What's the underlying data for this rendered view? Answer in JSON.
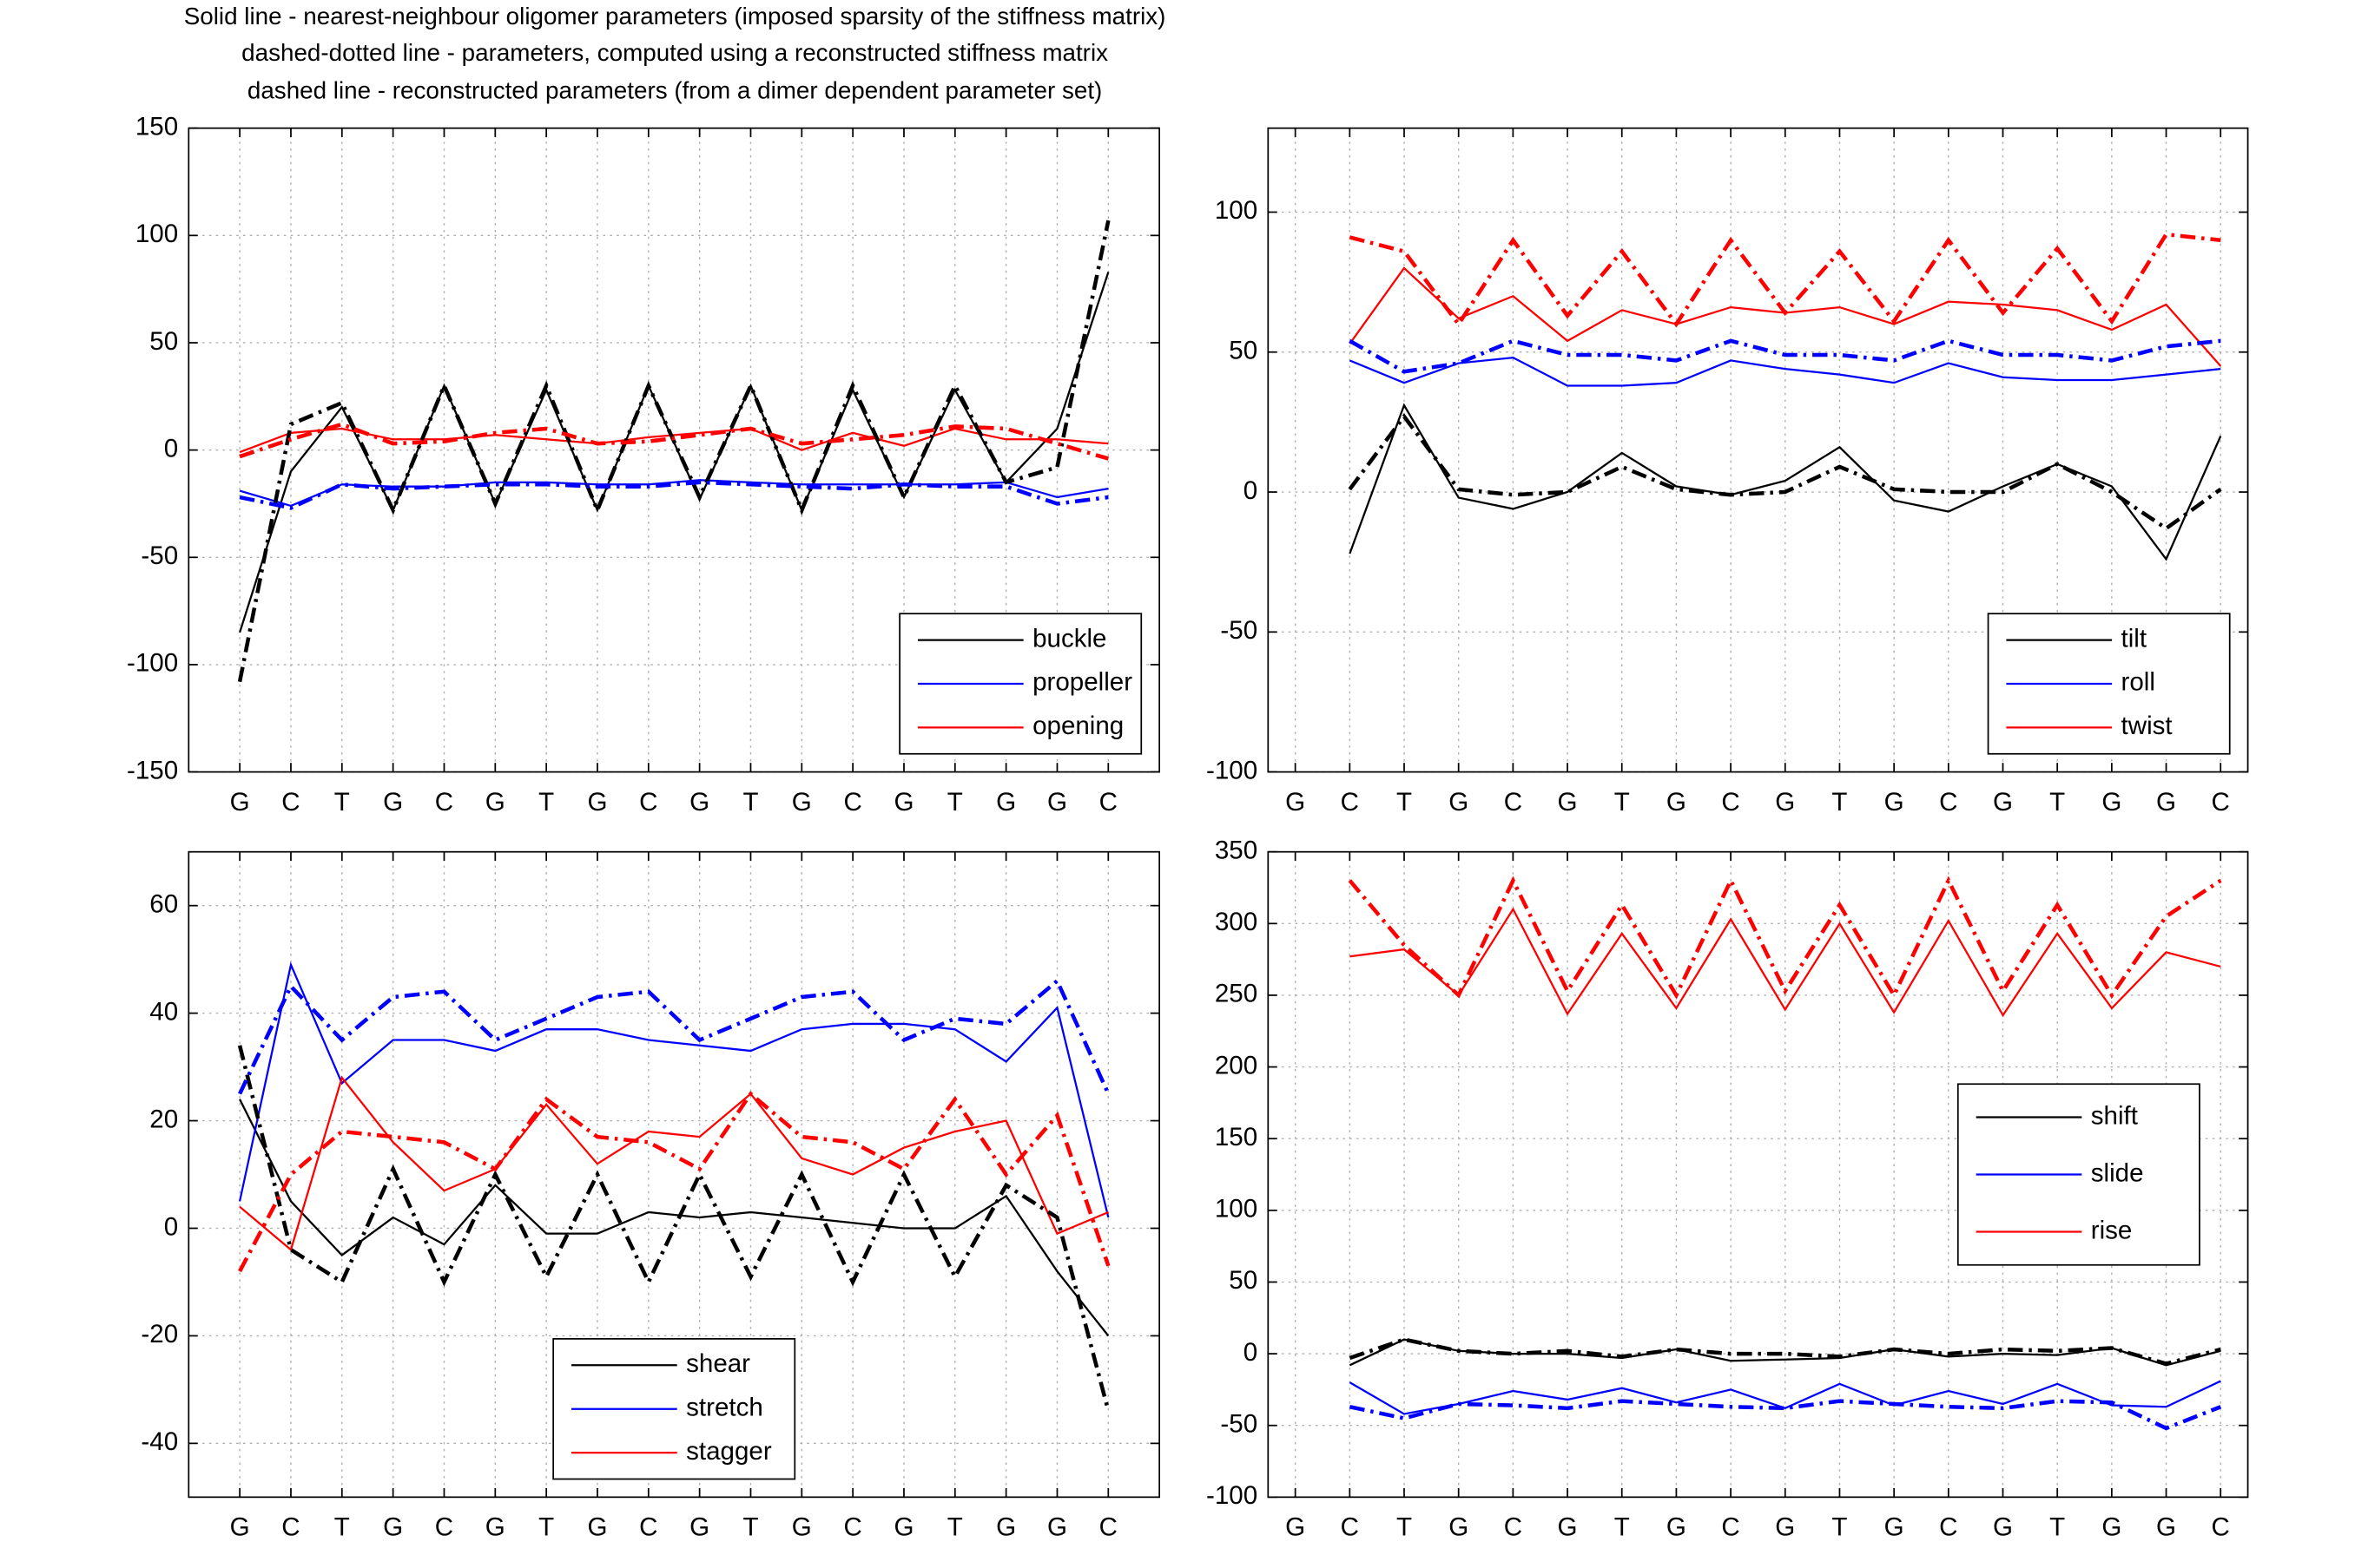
{
  "title_lines": [
    "Solid line - nearest-neighbour oligomer parameters (imposed sparsity of the stiffness matrix)",
    "dashed-dotted line - parameters, computed using a reconstructed stiffness matrix",
    "dashed line - reconstructed parameters (from a dimer dependent parameter set)"
  ],
  "chart_data": [
    {
      "type": "line",
      "categories": [
        "G",
        "C",
        "T",
        "G",
        "C",
        "G",
        "T",
        "G",
        "C",
        "G",
        "T",
        "G",
        "C",
        "G",
        "T",
        "G",
        "G",
        "C"
      ],
      "ylim": [
        -150,
        150
      ],
      "yticks": [
        -150,
        -100,
        -50,
        0,
        50,
        100,
        150
      ],
      "grid": true,
      "legend": "lower right",
      "series": [
        {
          "name": "buckle",
          "color": "#000000",
          "style": "solid",
          "values": [
            -85,
            -10,
            20,
            -28,
            30,
            -25,
            28,
            -28,
            30,
            -23,
            30,
            -28,
            28,
            -22,
            28,
            -15,
            10,
            83
          ]
        },
        {
          "name": "propeller",
          "color": "#0000ff",
          "style": "solid",
          "values": [
            -19,
            -26,
            -16,
            -17,
            -17,
            -15,
            -15,
            -16,
            -16,
            -14,
            -15,
            -16,
            -16,
            -16,
            -16,
            -15,
            -22,
            -18
          ]
        },
        {
          "name": "opening",
          "color": "#ff0000",
          "style": "solid",
          "values": [
            -1,
            8,
            10,
            5,
            5,
            7,
            5,
            3,
            6,
            8,
            10,
            0,
            8,
            2,
            10,
            5,
            5,
            3
          ]
        },
        {
          "color": "#000000",
          "style": "dashdot",
          "values": [
            -108,
            12,
            22,
            -28,
            30,
            -25,
            30,
            -28,
            30,
            -22,
            30,
            -28,
            30,
            -22,
            30,
            -15,
            -8,
            107
          ]
        },
        {
          "color": "#0000ff",
          "style": "dashdot",
          "values": [
            -22,
            -27,
            -16,
            -18,
            -17,
            -16,
            -16,
            -17,
            -17,
            -15,
            -16,
            -17,
            -18,
            -16,
            -17,
            -17,
            -25,
            -22
          ]
        },
        {
          "color": "#ff0000",
          "style": "dashdot",
          "values": [
            -3,
            5,
            12,
            3,
            4,
            8,
            10,
            3,
            4,
            7,
            10,
            3,
            5,
            7,
            11,
            10,
            3,
            -4
          ]
        }
      ]
    },
    {
      "type": "line",
      "categories": [
        "G",
        "C",
        "T",
        "G",
        "C",
        "G",
        "T",
        "G",
        "C",
        "G",
        "T",
        "G",
        "C",
        "G",
        "T",
        "G",
        "G",
        "C"
      ],
      "ylim": [
        -100,
        130
      ],
      "yticks": [
        -100,
        -50,
        0,
        50,
        100
      ],
      "grid": true,
      "legend": "lower right",
      "series": [
        {
          "name": "tilt",
          "color": "#000000",
          "style": "solid",
          "values": [
            null,
            -22,
            31,
            -2,
            -6,
            0,
            14,
            2,
            -1,
            4,
            16,
            -3,
            -7,
            2,
            10,
            2,
            -24,
            20
          ]
        },
        {
          "name": "roll",
          "color": "#0000ff",
          "style": "solid",
          "values": [
            null,
            47,
            39,
            46,
            48,
            38,
            38,
            39,
            47,
            44,
            42,
            39,
            46,
            41,
            40,
            40,
            42,
            44
          ]
        },
        {
          "name": "twist",
          "color": "#ff0000",
          "style": "solid",
          "values": [
            null,
            53,
            80,
            62,
            70,
            54,
            65,
            60,
            66,
            64,
            66,
            60,
            68,
            67,
            65,
            58,
            67,
            45
          ]
        },
        {
          "color": "#000000",
          "style": "dashdot",
          "values": [
            null,
            1,
            27,
            1,
            -1,
            0,
            9,
            1,
            -1,
            0,
            9,
            1,
            0,
            0,
            10,
            0,
            -13,
            1
          ]
        },
        {
          "color": "#0000ff",
          "style": "dashdot",
          "values": [
            null,
            54,
            43,
            46,
            54,
            49,
            49,
            47,
            54,
            49,
            49,
            47,
            54,
            49,
            49,
            47,
            52,
            54
          ]
        },
        {
          "color": "#ff0000",
          "style": "dashdot",
          "values": [
            null,
            91,
            86,
            60,
            90,
            63,
            86,
            60,
            90,
            64,
            86,
            61,
            90,
            64,
            87,
            61,
            92,
            90
          ]
        }
      ]
    },
    {
      "type": "line",
      "categories": [
        "G",
        "C",
        "T",
        "G",
        "C",
        "G",
        "T",
        "G",
        "C",
        "G",
        "T",
        "G",
        "C",
        "G",
        "T",
        "G",
        "G",
        "C"
      ],
      "ylim": [
        -50,
        70
      ],
      "yticks": [
        -40,
        -20,
        0,
        20,
        40,
        60
      ],
      "grid": true,
      "legend": "lower center",
      "series": [
        {
          "name": "shear",
          "color": "#000000",
          "style": "solid",
          "values": [
            24,
            5,
            -5,
            2,
            -3,
            8,
            -1,
            -1,
            3,
            2,
            3,
            2,
            1,
            0,
            0,
            6,
            -8,
            -20
          ]
        },
        {
          "name": "stretch",
          "color": "#0000ff",
          "style": "solid",
          "values": [
            5,
            49,
            27,
            35,
            35,
            33,
            37,
            37,
            35,
            34,
            33,
            37,
            38,
            38,
            37,
            31,
            41,
            2
          ]
        },
        {
          "name": "stagger",
          "color": "#ff0000",
          "style": "solid",
          "values": [
            4,
            -4,
            28,
            16,
            7,
            11,
            23,
            12,
            18,
            17,
            25,
            13,
            10,
            15,
            18,
            20,
            -1,
            3
          ]
        },
        {
          "color": "#000000",
          "style": "dashdot",
          "values": [
            34,
            -4,
            -10,
            11,
            -10,
            10,
            -9,
            10,
            -10,
            10,
            -9,
            10,
            -10,
            10,
            -9,
            8,
            2,
            -34
          ]
        },
        {
          "color": "#0000ff",
          "style": "dashdot",
          "values": [
            25,
            45,
            35,
            43,
            44,
            35,
            39,
            43,
            44,
            35,
            39,
            43,
            44,
            35,
            39,
            38,
            46,
            25
          ]
        },
        {
          "color": "#ff0000",
          "style": "dashdot",
          "values": [
            -8,
            10,
            18,
            17,
            16,
            11,
            24,
            17,
            16,
            11,
            25,
            17,
            16,
            11,
            24,
            10,
            21,
            -7
          ]
        }
      ]
    },
    {
      "type": "line",
      "categories": [
        "G",
        "C",
        "T",
        "G",
        "C",
        "G",
        "T",
        "G",
        "C",
        "G",
        "T",
        "G",
        "C",
        "G",
        "T",
        "G",
        "G",
        "C"
      ],
      "ylim": [
        -100,
        350
      ],
      "yticks": [
        -100,
        -50,
        0,
        50,
        100,
        150,
        200,
        250,
        300,
        350
      ],
      "grid": true,
      "legend": "center right",
      "series": [
        {
          "name": "shift",
          "color": "#000000",
          "style": "solid",
          "values": [
            null,
            -8,
            10,
            2,
            0,
            0,
            -3,
            3,
            -5,
            -4,
            -3,
            3,
            -2,
            0,
            -1,
            4,
            -8,
            2
          ]
        },
        {
          "name": "slide",
          "color": "#0000ff",
          "style": "solid",
          "values": [
            null,
            -20,
            -42,
            -35,
            -26,
            -32,
            -24,
            -34,
            -25,
            -38,
            -21,
            -36,
            -26,
            -35,
            -21,
            -36,
            -37,
            -19
          ]
        },
        {
          "name": "rise",
          "color": "#ff0000",
          "style": "solid",
          "values": [
            null,
            277,
            282,
            250,
            310,
            237,
            293,
            241,
            303,
            240,
            300,
            238,
            302,
            236,
            293,
            241,
            280,
            270
          ]
        },
        {
          "color": "#000000",
          "style": "dashdot",
          "values": [
            null,
            -3,
            10,
            2,
            0,
            2,
            -2,
            3,
            0,
            0,
            -2,
            3,
            0,
            3,
            2,
            4,
            -7,
            3
          ]
        },
        {
          "color": "#0000ff",
          "style": "dashdot",
          "values": [
            null,
            -37,
            -45,
            -35,
            -36,
            -38,
            -33,
            -35,
            -37,
            -38,
            -33,
            -35,
            -37,
            -38,
            -33,
            -34,
            -52,
            -37
          ]
        },
        {
          "color": "#ff0000",
          "style": "dashdot",
          "values": [
            null,
            330,
            285,
            250,
            330,
            253,
            313,
            250,
            330,
            253,
            313,
            250,
            330,
            253,
            313,
            250,
            305,
            330
          ]
        }
      ]
    }
  ]
}
